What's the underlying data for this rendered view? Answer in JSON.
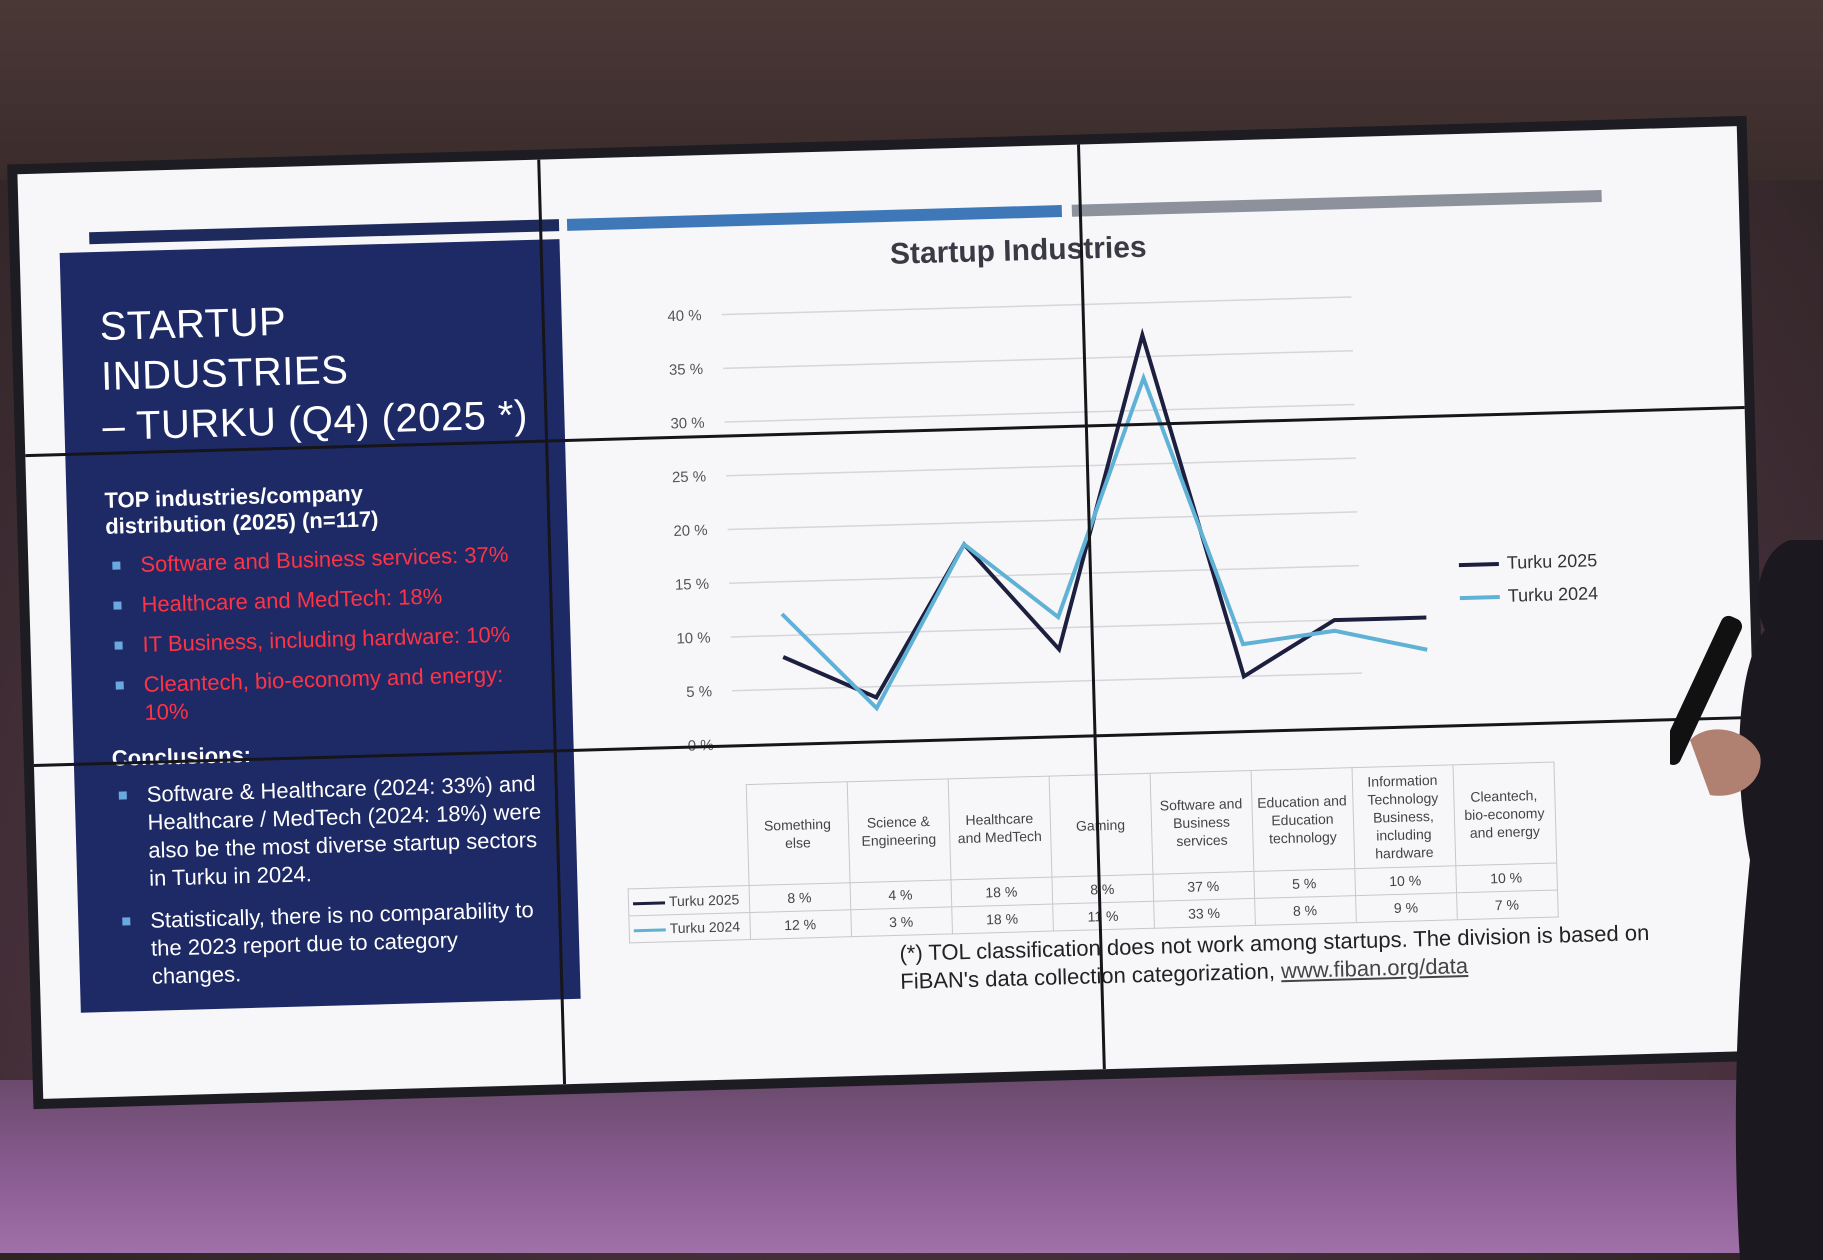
{
  "panel": {
    "title_line1": "STARTUP INDUSTRIES",
    "title_line2": "– TURKU (Q4) (2025 *)",
    "subhead_line1": "TOP industries/company",
    "subhead_line2": "distribution (2025) (n=117)",
    "top_items": [
      "Software and Business services: 37%",
      "Healthcare and MedTech: 18%",
      "IT Business, including hardware: 10%",
      "Cleantech, bio-economy and energy: 10%"
    ],
    "conclusions_heading": "Conclusions:",
    "conclusions": [
      "Software & Healthcare (2024: 33%) and Healthcare / MedTech (2024: 18%) were also be the most diverse startup sectors in Turku in 2024.",
      "Statistically, there is no comparability to the 2023 report due to category changes."
    ]
  },
  "chart_data": {
    "type": "line",
    "title": "Startup Industries",
    "categories": [
      "Something else",
      "Science & Engineering",
      "Healthcare and MedTech",
      "Gaming",
      "Software and Business services",
      "Education and Education technology",
      "Information Technology Business, including hardware",
      "Cleantech, bio-economy and energy"
    ],
    "series": [
      {
        "name": "Turku 2025",
        "color": "#1d1f3f",
        "values": [
          8,
          4,
          18,
          8,
          37,
          5,
          10,
          10
        ],
        "labels": [
          "8 %",
          "4 %",
          "18 %",
          "8 %",
          "37 %",
          "5 %",
          "10 %",
          "10 %"
        ]
      },
      {
        "name": "Turku 2024",
        "color": "#5fb2d6",
        "values": [
          12,
          3,
          18,
          11,
          33,
          8,
          9,
          7
        ],
        "labels": [
          "12 %",
          "3 %",
          "18 %",
          "11 %",
          "33 %",
          "8 %",
          "9 %",
          "7 %"
        ]
      }
    ],
    "yticks": [
      "0 %",
      "5 %",
      "10 %",
      "15 %",
      "20 %",
      "25 %",
      "30 %",
      "35 %",
      "40 %"
    ],
    "ylim": [
      0,
      40
    ],
    "grid": true,
    "legend_position": "right"
  },
  "footnote": {
    "text": "(*) TOL classification does not work among startups. The division is based on FiBAN's data collection categorization,",
    "link": "www.fiban.org/data"
  }
}
